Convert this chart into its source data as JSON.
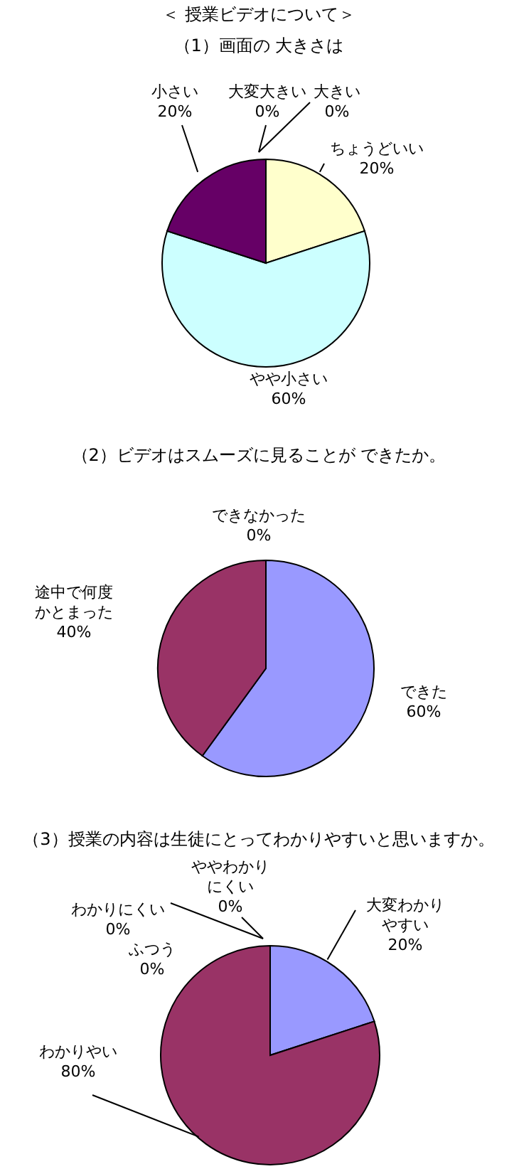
{
  "chart_data": [
    {
      "type": "pie",
      "title": "＜ 授業ビデオについて＞",
      "subtitle": "（1）画面の 大きさは",
      "categories": [
        "大変大きい",
        "大きい",
        "ちょうどいい",
        "やや小さい",
        "小さい"
      ],
      "values": [
        0,
        0,
        20,
        60,
        20
      ],
      "colors": [
        "#ccccff",
        "#ffccff",
        "#ffffcc",
        "#ccffff",
        "#660066"
      ],
      "value_labels": [
        "0%",
        "0%",
        "20%",
        "60%",
        "20%"
      ]
    },
    {
      "type": "pie",
      "title": "（2）ビデオはスムーズに見ることが できたか。",
      "categories": [
        "できた",
        "途中で何度かとまった",
        "できなかった"
      ],
      "values": [
        60,
        40,
        0
      ],
      "colors": [
        "#9999ff",
        "#993366",
        "#ffffcc"
      ],
      "value_labels": [
        "60%",
        "40%",
        "0%"
      ]
    },
    {
      "type": "pie",
      "title": "（3）授業の内容は生徒にとってわかりやすいと思いますか。",
      "categories": [
        "大変わかりやすい",
        "わかりやい",
        "ふつう",
        "わかりにくい",
        "ややわかりにくい"
      ],
      "values": [
        20,
        80,
        0,
        0,
        0
      ],
      "colors": [
        "#9999ff",
        "#993366",
        "#ffffcc",
        "#ccffff",
        "#660066"
      ],
      "value_labels": [
        "20%",
        "80%",
        "0%",
        "0%",
        "0%"
      ]
    }
  ]
}
